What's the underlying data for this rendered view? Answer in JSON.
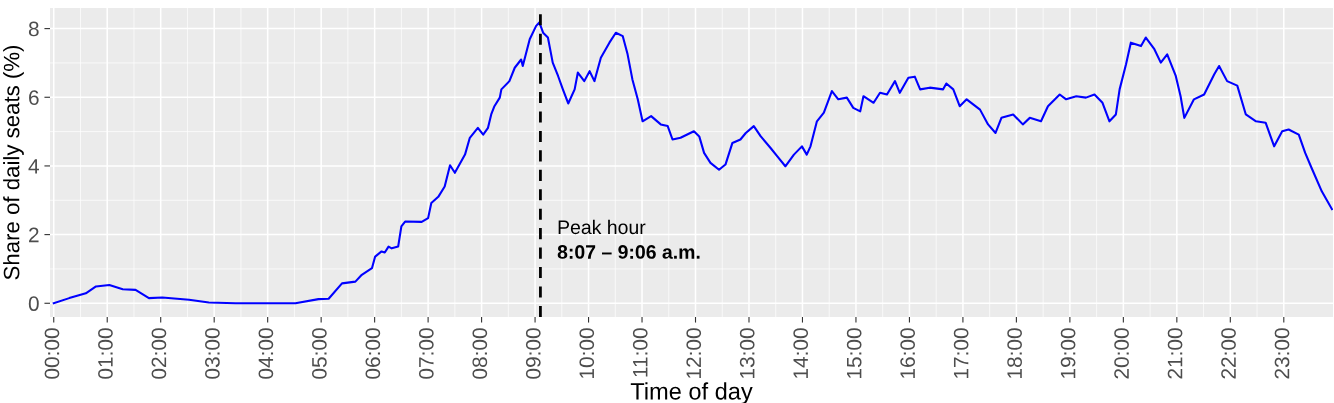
{
  "chart_data": {
    "type": "line",
    "xlabel": "Time of day",
    "ylabel": "Share of daily seats (%)",
    "x": [
      0,
      0.29,
      0.6,
      0.79,
      1.04,
      1.29,
      1.53,
      1.78,
      2.03,
      2.53,
      2.9,
      3.4,
      4.52,
      4.95,
      5.14,
      5.39,
      5.64,
      5.76,
      5.95,
      6.01,
      6.13,
      6.19,
      6.26,
      6.32,
      6.44,
      6.5,
      6.57,
      6.88,
      7.0,
      7.06,
      7.19,
      7.31,
      7.41,
      7.5,
      7.69,
      7.78,
      7.93,
      8.03,
      8.12,
      8.18,
      8.24,
      8.34,
      8.37,
      8.52,
      8.62,
      8.74,
      8.77,
      8.9,
      9.02,
      9.08,
      9.15,
      9.24,
      9.33,
      9.43,
      9.52,
      9.62,
      9.74,
      9.8,
      9.92,
      10.02,
      10.11,
      10.23,
      10.39,
      10.51,
      10.64,
      10.73,
      10.82,
      10.92,
      11.01,
      11.17,
      11.35,
      11.48,
      11.57,
      11.72,
      11.97,
      12.07,
      12.16,
      12.28,
      12.44,
      12.56,
      12.69,
      12.84,
      12.94,
      13.09,
      13.22,
      13.4,
      13.53,
      13.68,
      13.84,
      13.99,
      14.08,
      14.15,
      14.27,
      14.4,
      14.55,
      14.67,
      14.83,
      14.95,
      15.08,
      15.14,
      15.33,
      15.45,
      15.58,
      15.73,
      15.82,
      15.98,
      16.1,
      16.2,
      16.38,
      16.63,
      16.69,
      16.82,
      16.94,
      17.07,
      17.32,
      17.47,
      17.61,
      17.72,
      17.94,
      18.12,
      18.25,
      18.46,
      18.59,
      18.81,
      18.93,
      19.12,
      19.3,
      19.46,
      19.61,
      19.74,
      19.86,
      19.93,
      20.05,
      20.14,
      20.33,
      20.42,
      20.58,
      20.7,
      20.82,
      20.98,
      21.07,
      21.14,
      21.32,
      21.51,
      21.7,
      21.79,
      21.94,
      22.13,
      22.29,
      22.48,
      22.66,
      22.82,
      22.97,
      23.09,
      23.28,
      23.4,
      23.52,
      23.71,
      23.9
    ],
    "series": [
      {
        "color": "#0000ff",
        "values": [
          0,
          0.15,
          0.29,
          0.49,
          0.53,
          0.41,
          0.39,
          0.15,
          0.17,
          0.1,
          0.02,
          0,
          0,
          0.12,
          0.13,
          0.58,
          0.63,
          0.83,
          1.02,
          1.36,
          1.51,
          1.48,
          1.65,
          1.6,
          1.65,
          2.24,
          2.38,
          2.37,
          2.48,
          2.92,
          3.1,
          3.4,
          4.02,
          3.8,
          4.33,
          4.82,
          5.11,
          4.91,
          5.11,
          5.5,
          5.74,
          5.99,
          6.23,
          6.47,
          6.86,
          7.1,
          6.91,
          7.69,
          8.08,
          8.18,
          7.88,
          7.74,
          7.01,
          6.62,
          6.23,
          5.82,
          6.23,
          6.72,
          6.47,
          6.76,
          6.47,
          7.15,
          7.59,
          7.88,
          7.78,
          7.25,
          6.52,
          5.94,
          5.3,
          5.45,
          5.21,
          5.16,
          4.77,
          4.82,
          5.01,
          4.86,
          4.38,
          4.09,
          3.89,
          4.04,
          4.67,
          4.77,
          4.96,
          5.16,
          4.86,
          4.53,
          4.28,
          3.99,
          4.33,
          4.57,
          4.33,
          4.57,
          5.3,
          5.55,
          6.18,
          5.94,
          5.99,
          5.69,
          5.59,
          6.03,
          5.84,
          6.13,
          6.08,
          6.47,
          6.13,
          6.57,
          6.6,
          6.23,
          6.28,
          6.23,
          6.4,
          6.23,
          5.74,
          5.94,
          5.64,
          5.21,
          4.96,
          5.4,
          5.5,
          5.21,
          5.4,
          5.3,
          5.74,
          6.08,
          5.94,
          6.03,
          5.99,
          6.08,
          5.84,
          5.3,
          5.5,
          6.23,
          6.96,
          7.59,
          7.49,
          7.74,
          7.4,
          7.01,
          7.25,
          6.62,
          6.03,
          5.4,
          5.94,
          6.08,
          6.67,
          6.91,
          6.47,
          6.34,
          5.5,
          5.3,
          5.26,
          4.57,
          5.01,
          5.06,
          4.91,
          4.38,
          3.94,
          3.26,
          2.74
        ]
      }
    ],
    "xlim": [
      -0.07,
      23.92
    ],
    "ylim": [
      -0.4,
      8.6
    ],
    "xticks": [
      {
        "value": 0,
        "label": "00:00"
      },
      {
        "value": 1,
        "label": "01:00"
      },
      {
        "value": 2,
        "label": "02:00"
      },
      {
        "value": 3,
        "label": "03:00"
      },
      {
        "value": 4,
        "label": "04:00"
      },
      {
        "value": 5,
        "label": "05:00"
      },
      {
        "value": 6,
        "label": "06:00"
      },
      {
        "value": 7,
        "label": "07:00"
      },
      {
        "value": 8,
        "label": "08:00"
      },
      {
        "value": 9,
        "label": "09:00"
      },
      {
        "value": 10,
        "label": "10:00"
      },
      {
        "value": 11,
        "label": "11:00"
      },
      {
        "value": 12,
        "label": "12:00"
      },
      {
        "value": 13,
        "label": "13:00"
      },
      {
        "value": 14,
        "label": "14:00"
      },
      {
        "value": 15,
        "label": "15:00"
      },
      {
        "value": 16,
        "label": "16:00"
      },
      {
        "value": 17,
        "label": "17:00"
      },
      {
        "value": 18,
        "label": "18:00"
      },
      {
        "value": 19,
        "label": "19:00"
      },
      {
        "value": 20,
        "label": "20:00"
      },
      {
        "value": 21,
        "label": "21:00"
      },
      {
        "value": 22,
        "label": "22:00"
      },
      {
        "value": 23,
        "label": "23:00"
      }
    ],
    "yticks": [
      0,
      2,
      4,
      6,
      8
    ],
    "ref_lines": [
      {
        "axis": "x",
        "value": 9.1,
        "color": "#000000",
        "line_style": "dashed"
      }
    ],
    "annotations": [
      "Peak hour",
      "8:07 – 9:06 a.m."
    ],
    "grid": true,
    "legend": false,
    "line_style": "solid",
    "marker": "none"
  }
}
